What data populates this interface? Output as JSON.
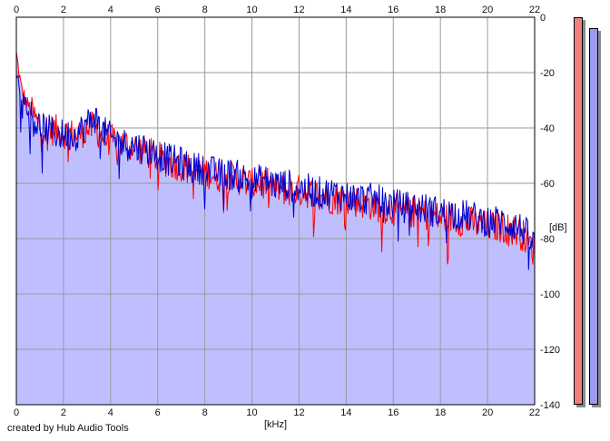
{
  "chart_data": {
    "type": "area",
    "xlabel": "[kHz]",
    "ylabel": "[dB]",
    "xlim": [
      0,
      22
    ],
    "ylim": [
      -140,
      0
    ],
    "x_ticks": [
      0,
      2,
      4,
      6,
      8,
      10,
      12,
      14,
      16,
      18,
      20,
      22
    ],
    "y_ticks": [
      0,
      -20,
      -40,
      -60,
      -80,
      -100,
      -120,
      -140
    ],
    "grid": true,
    "colors": {
      "fill": "#bfbfff",
      "channel_1": "#ff0000",
      "channel_2": "#0000cc",
      "grid": "#9a9a9a"
    },
    "series": [
      {
        "x": [
          0.0,
          0.2,
          0.4,
          0.6,
          0.8,
          1.0,
          1.5,
          2.0,
          2.5,
          3.0,
          3.3,
          3.6,
          4.0,
          4.5,
          5.0,
          5.5,
          6.0,
          6.5,
          7.0,
          7.5,
          8.0,
          8.5,
          9.0,
          9.5,
          10.0,
          10.5,
          11.0,
          11.5,
          12.0,
          12.5,
          13.0,
          13.5,
          14.0,
          14.5,
          15.0,
          15.5,
          16.0,
          16.5,
          17.0,
          17.5,
          18.0,
          18.5,
          19.0,
          19.5,
          20.0,
          20.5,
          21.0,
          21.5,
          22.0
        ],
        "values": [
          -13,
          -25,
          -30,
          -33,
          -36,
          -39,
          -40,
          -41,
          -42,
          -40,
          -39,
          -42,
          -44,
          -45,
          -46,
          -48,
          -50,
          -52,
          -53,
          -55,
          -55,
          -57,
          -57,
          -58,
          -60,
          -59,
          -61,
          -62,
          -62,
          -63,
          -64,
          -65,
          -65,
          -66,
          -67,
          -68,
          -69,
          -70,
          -70,
          -71,
          -72,
          -72,
          -73,
          -74,
          -75,
          -75,
          -76,
          -78,
          -84
        ]
      },
      {
        "x": [
          0.0,
          0.2,
          0.4,
          0.6,
          0.8,
          1.0,
          1.5,
          2.0,
          2.5,
          3.0,
          3.3,
          3.6,
          4.0,
          4.5,
          5.0,
          5.5,
          6.0,
          6.5,
          7.0,
          7.5,
          8.0,
          8.5,
          9.0,
          9.5,
          10.0,
          10.5,
          11.0,
          11.5,
          12.0,
          12.5,
          13.0,
          13.5,
          14.0,
          14.5,
          15.0,
          15.5,
          16.0,
          16.5,
          17.0,
          17.5,
          18.0,
          18.5,
          19.0,
          19.5,
          20.0,
          20.5,
          21.0,
          21.5,
          22.0
        ],
        "values": [
          -20,
          -27,
          -31,
          -34,
          -37,
          -39,
          -41,
          -42,
          -42,
          -38,
          -35,
          -40,
          -43,
          -45,
          -46,
          -47,
          -49,
          -51,
          -52,
          -54,
          -54,
          -56,
          -56,
          -57,
          -59,
          -58,
          -60,
          -60,
          -61,
          -62,
          -63,
          -63,
          -64,
          -65,
          -65,
          -66,
          -67,
          -68,
          -68,
          -69,
          -70,
          -70,
          -71,
          -72,
          -73,
          -73,
          -74,
          -76,
          -82
        ]
      }
    ],
    "level_meters": [
      {
        "level_db": -140,
        "color": "#f08080"
      },
      {
        "level_db": -140,
        "color": "#9a9af0"
      }
    ]
  },
  "footer": {
    "credit": "created by Hub Audio Tools"
  }
}
